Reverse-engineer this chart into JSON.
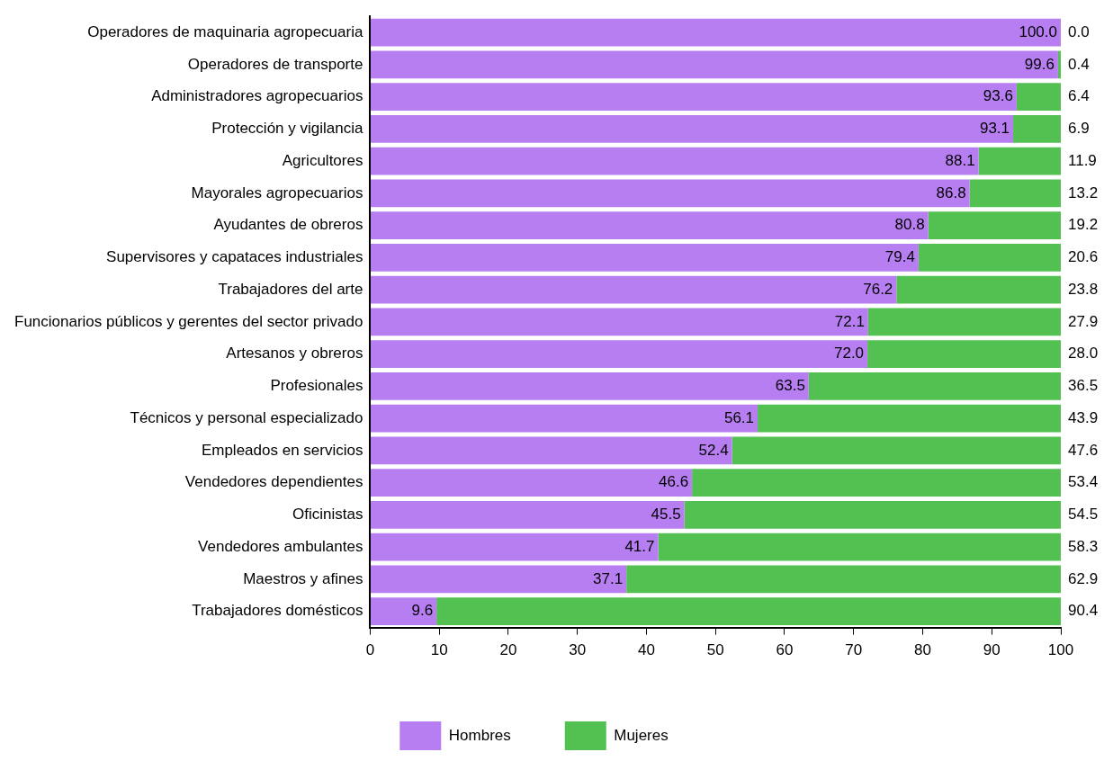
{
  "chart_data": {
    "type": "bar",
    "orientation": "horizontal",
    "stacked": true,
    "categories": [
      "Operadores de maquinaria agropecuaria",
      "Operadores de transporte",
      "Administradores agropecuarios",
      "Protección y vigilancia",
      "Agricultores",
      "Mayorales agropecuarios",
      "Ayudantes de obreros",
      "Supervisores y capataces industriales",
      "Trabajadores del arte",
      "Funcionarios públicos y gerentes del sector privado",
      "Artesanos y obreros",
      "Profesionales",
      "Técnicos y personal especializado",
      "Empleados en servicios",
      "Vendedores dependientes",
      "Oficinistas",
      "Vendedores ambulantes",
      "Maestros y afines",
      "Trabajadores domésticos"
    ],
    "series": [
      {
        "name": "Hombres",
        "color": "#b77ef2",
        "values": [
          100.0,
          99.6,
          93.6,
          93.1,
          88.1,
          86.8,
          80.8,
          79.4,
          76.2,
          72.1,
          72.0,
          63.5,
          56.1,
          52.4,
          46.6,
          45.5,
          41.7,
          37.1,
          9.6
        ],
        "value_labels": [
          "100.0",
          "99.6",
          "93.6",
          "93.1",
          "88.1",
          "86.8",
          "80.8",
          "79.4",
          "76.2",
          "72.1",
          "72.0",
          "63.5",
          "56.1",
          "52.4",
          "46.6",
          "45.5",
          "41.7",
          "37.1",
          "9.6"
        ]
      },
      {
        "name": "Mujeres",
        "color": "#52c152",
        "values": [
          0.0,
          0.4,
          6.4,
          6.9,
          11.9,
          13.2,
          19.2,
          20.6,
          23.8,
          27.9,
          28.0,
          36.5,
          43.9,
          47.6,
          53.4,
          54.5,
          58.3,
          62.9,
          90.4
        ],
        "value_labels": [
          "0.0",
          "0.4",
          "6.4",
          "6.9",
          "11.9",
          "13.2",
          "19.2",
          "20.6",
          "23.8",
          "27.9",
          "28.0",
          "36.5",
          "43.9",
          "47.6",
          "53.4",
          "54.5",
          "58.3",
          "62.9",
          "90.4"
        ]
      }
    ],
    "xlim": [
      0,
      100
    ],
    "xticks": [
      0,
      10,
      20,
      30,
      40,
      50,
      60,
      70,
      80,
      90,
      100
    ],
    "grid": false,
    "legend": "bottom"
  }
}
